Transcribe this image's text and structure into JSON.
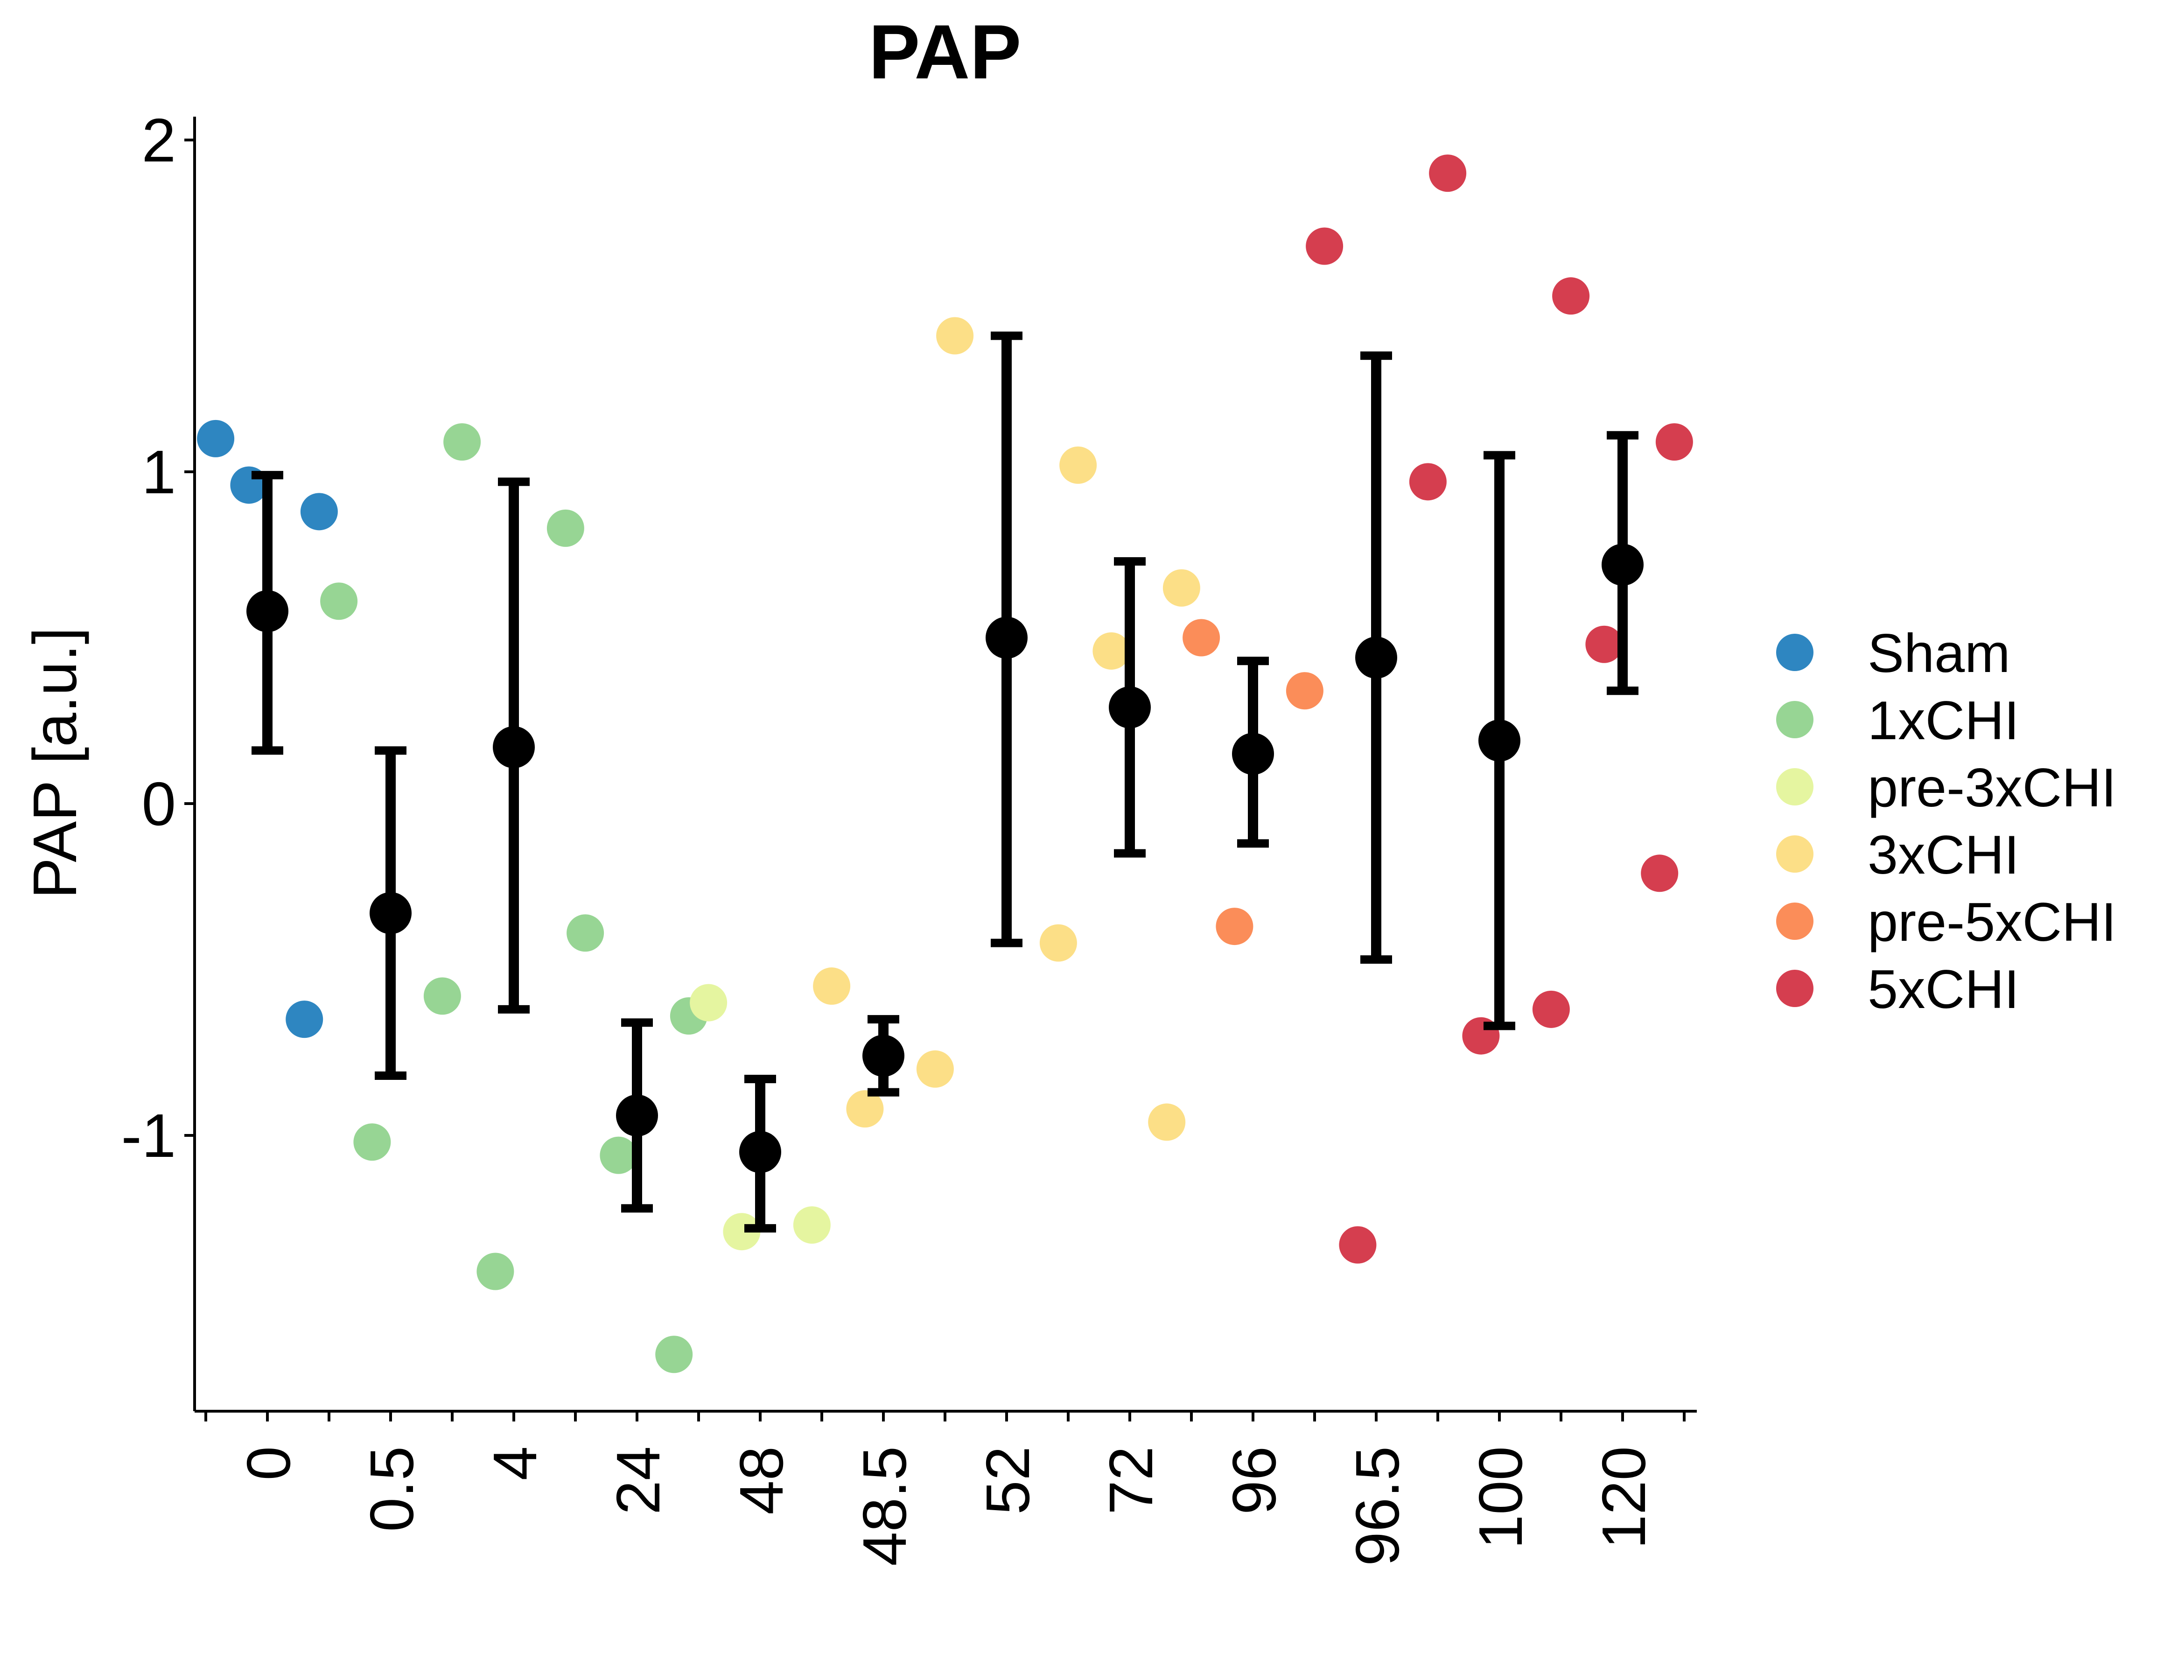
{
  "chart_data": {
    "type": "scatter",
    "title": "PAP",
    "xlabel": "",
    "ylabel": "PAP [a.u.]",
    "ylim": [
      -1.83,
      2.07
    ],
    "yticks": [
      "-1",
      "0",
      "1",
      "2"
    ],
    "categories": [
      "0",
      "0.5",
      "4",
      "24",
      "48",
      "48.5",
      "52",
      "72",
      "96",
      "96.5",
      "100",
      "120"
    ],
    "grid": false,
    "legend_position": "right",
    "legend": [
      {
        "name": "Sham",
        "color": "#2E86C1"
      },
      {
        "name": "1xCHI",
        "color": "#97D594"
      },
      {
        "name": "pre-3xCHI",
        "color": "#E5F5A0"
      },
      {
        "name": "3xCHI",
        "color": "#FCDF87"
      },
      {
        "name": "pre-5xCHI",
        "color": "#FB8D59"
      },
      {
        "name": "5xCHI",
        "color": "#D53E4F"
      }
    ],
    "points": [
      {
        "x": "0",
        "y": 1.1,
        "group": "Sham"
      },
      {
        "x": "0",
        "y": 0.88,
        "group": "Sham"
      },
      {
        "x": "0",
        "y": 0.96,
        "group": "Sham"
      },
      {
        "x": "0",
        "y": -0.65,
        "group": "Sham"
      },
      {
        "x": "0.5",
        "y": 0.61,
        "group": "1xCHI"
      },
      {
        "x": "0.5",
        "y": -0.58,
        "group": "1xCHI"
      },
      {
        "x": "0.5",
        "y": -1.02,
        "group": "1xCHI"
      },
      {
        "x": "4",
        "y": 1.09,
        "group": "1xCHI"
      },
      {
        "x": "4",
        "y": 0.83,
        "group": "1xCHI"
      },
      {
        "x": "4",
        "y": -1.41,
        "group": "1xCHI"
      },
      {
        "x": "24",
        "y": -0.39,
        "group": "1xCHI"
      },
      {
        "x": "24",
        "y": -0.64,
        "group": "1xCHI"
      },
      {
        "x": "24",
        "y": -1.06,
        "group": "1xCHI"
      },
      {
        "x": "24",
        "y": -1.66,
        "group": "1xCHI"
      },
      {
        "x": "48",
        "y": -0.6,
        "group": "pre-3xCHI"
      },
      {
        "x": "48",
        "y": -1.27,
        "group": "pre-3xCHI"
      },
      {
        "x": "48",
        "y": -1.29,
        "group": "pre-3xCHI"
      },
      {
        "x": "48.5",
        "y": -0.55,
        "group": "3xCHI"
      },
      {
        "x": "48.5",
        "y": -0.8,
        "group": "3xCHI"
      },
      {
        "x": "48.5",
        "y": -0.92,
        "group": "3xCHI"
      },
      {
        "x": "52",
        "y": 1.41,
        "group": "3xCHI"
      },
      {
        "x": "52",
        "y": -0.42,
        "group": "3xCHI"
      },
      {
        "x": "72",
        "y": 1.02,
        "group": "3xCHI"
      },
      {
        "x": "72",
        "y": 0.65,
        "group": "3xCHI"
      },
      {
        "x": "72",
        "y": 0.46,
        "group": "3xCHI"
      },
      {
        "x": "72",
        "y": -0.96,
        "group": "3xCHI"
      },
      {
        "x": "96",
        "y": 0.5,
        "group": "pre-5xCHI"
      },
      {
        "x": "96",
        "y": 0.34,
        "group": "pre-5xCHI"
      },
      {
        "x": "96",
        "y": -0.37,
        "group": "pre-5xCHI"
      },
      {
        "x": "96.5",
        "y": 1.68,
        "group": "5xCHI"
      },
      {
        "x": "96.5",
        "y": 0.97,
        "group": "5xCHI"
      },
      {
        "x": "96.5",
        "y": -1.33,
        "group": "5xCHI"
      },
      {
        "x": "100",
        "y": 1.9,
        "group": "5xCHI"
      },
      {
        "x": "100",
        "y": -0.62,
        "group": "5xCHI"
      },
      {
        "x": "100",
        "y": -0.7,
        "group": "5xCHI"
      },
      {
        "x": "120",
        "y": 1.53,
        "group": "5xCHI"
      },
      {
        "x": "120",
        "y": 1.09,
        "group": "5xCHI"
      },
      {
        "x": "120",
        "y": 0.48,
        "group": "5xCHI"
      },
      {
        "x": "120",
        "y": -0.21,
        "group": "5xCHI"
      }
    ],
    "summary": [
      {
        "x": "0",
        "mean": 0.58,
        "lower": 0.16,
        "upper": 0.99
      },
      {
        "x": "0.5",
        "mean": -0.33,
        "lower": -0.82,
        "upper": 0.16
      },
      {
        "x": "4",
        "mean": 0.17,
        "lower": -0.62,
        "upper": 0.97
      },
      {
        "x": "24",
        "mean": -0.94,
        "lower": -1.22,
        "upper": -0.66
      },
      {
        "x": "48",
        "mean": -1.05,
        "lower": -1.28,
        "upper": -0.83
      },
      {
        "x": "48.5",
        "mean": -0.76,
        "lower": -0.87,
        "upper": -0.65
      },
      {
        "x": "52",
        "mean": 0.5,
        "lower": -0.42,
        "upper": 1.41
      },
      {
        "x": "72",
        "mean": 0.29,
        "lower": -0.15,
        "upper": 0.73
      },
      {
        "x": "96",
        "mean": 0.15,
        "lower": -0.12,
        "upper": 0.43
      },
      {
        "x": "96.5",
        "mean": 0.44,
        "lower": -0.47,
        "upper": 1.35
      },
      {
        "x": "100",
        "mean": 0.19,
        "lower": -0.67,
        "upper": 1.05
      },
      {
        "x": "120",
        "mean": 0.72,
        "lower": 0.34,
        "upper": 1.11
      }
    ]
  }
}
